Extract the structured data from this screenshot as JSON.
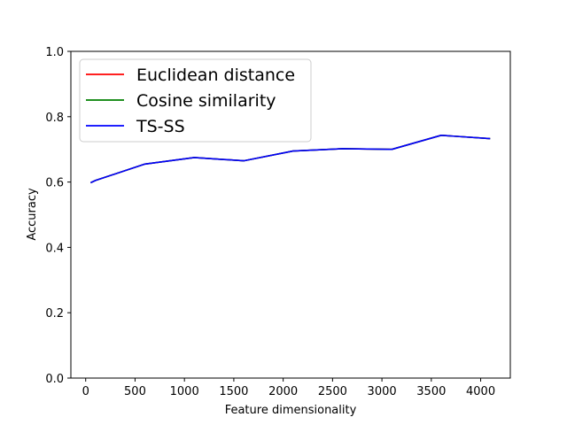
{
  "chart_data": {
    "type": "line",
    "xlabel": "Feature dimensionality",
    "ylabel": "Accuracy",
    "xlim": [
      -150,
      4300
    ],
    "ylim": [
      0,
      1
    ],
    "xticks": [
      0,
      500,
      1000,
      1500,
      2000,
      2500,
      3000,
      3500,
      4000
    ],
    "yticks": [
      0.0,
      0.2,
      0.4,
      0.6,
      0.8,
      1.0
    ],
    "legend_position": "upper-left",
    "grid": false,
    "x": [
      50,
      100,
      600,
      1100,
      1600,
      2100,
      2600,
      3100,
      3600,
      4096
    ],
    "series": [
      {
        "name": "Euclidean distance",
        "color": "#ff0000",
        "values": [
          0.598,
          0.605,
          0.655,
          0.675,
          0.665,
          0.695,
          0.702,
          0.7,
          0.743,
          0.733
        ]
      },
      {
        "name": "Cosine similarity",
        "color": "#008000",
        "values": [
          0.598,
          0.605,
          0.655,
          0.675,
          0.665,
          0.695,
          0.702,
          0.7,
          0.743,
          0.733
        ]
      },
      {
        "name": "TS-SS",
        "color": "#0000ff",
        "values": [
          0.598,
          0.605,
          0.655,
          0.675,
          0.665,
          0.695,
          0.702,
          0.7,
          0.743,
          0.733
        ]
      }
    ]
  }
}
